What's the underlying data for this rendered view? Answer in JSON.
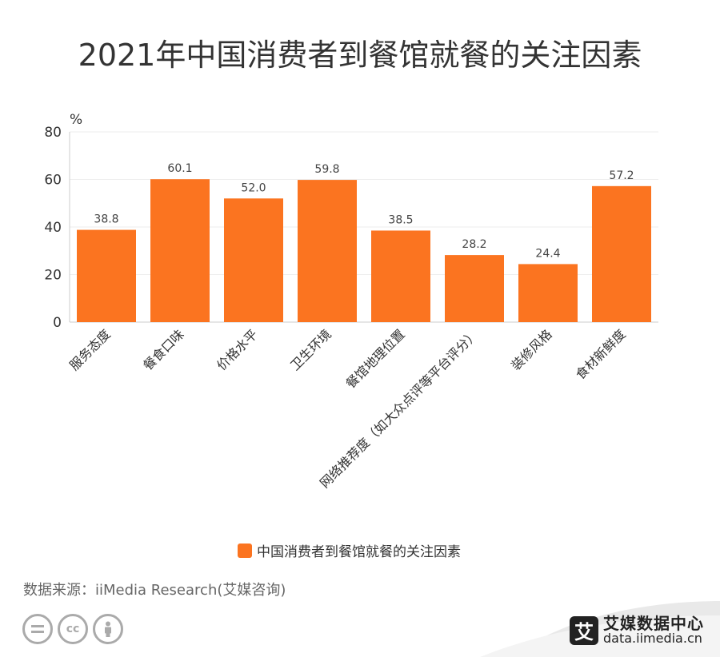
{
  "title": "2021年中国消费者到餐馆就餐的关注因素",
  "chart_data": {
    "type": "bar",
    "unit_label": "%",
    "categories": [
      "服务态度",
      "餐食口味",
      "价格水平",
      "卫生环境",
      "餐馆地理位置",
      "网络推荐度（如大众点评等平台评分）",
      "装修风格",
      "食材新鲜度"
    ],
    "series": [
      {
        "name": "中国消费者到餐馆就餐的关注因素",
        "values": [
          38.8,
          60.1,
          52.0,
          59.8,
          38.5,
          28.2,
          24.4,
          57.2
        ]
      }
    ],
    "value_labels": [
      "38.8",
      "60.1",
      "52.0",
      "59.8",
      "38.5",
      "28.2",
      "24.4",
      "57.2"
    ],
    "ylim": [
      0,
      80
    ],
    "yticks": [
      "0",
      "20",
      "40",
      "60",
      "80"
    ],
    "grid": true,
    "legend_position": "bottom",
    "bar_color": "#fb7420"
  },
  "source": "数据来源：iiMedia Research(艾媒咨询)",
  "brand": {
    "mark": "艾",
    "name": "艾媒数据中心",
    "url": "data.iimedia.cn"
  },
  "license_icons": [
    "equals-icon",
    "cc-icon",
    "person-icon"
  ]
}
